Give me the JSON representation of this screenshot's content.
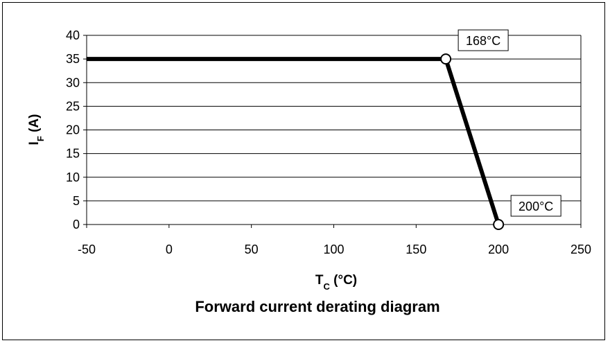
{
  "chart_data": {
    "type": "line",
    "title": "Forward current derating diagram",
    "xlabel": {
      "main": "T",
      "sub": "C",
      "rest": " (°C)"
    },
    "ylabel": {
      "main": "I",
      "sub": "F",
      "rest": " (A)"
    },
    "xlim": [
      -50,
      250
    ],
    "ylim": [
      0,
      40
    ],
    "xticks": [
      -50,
      0,
      50,
      100,
      150,
      200,
      250
    ],
    "yticks": [
      0,
      5,
      10,
      15,
      20,
      25,
      30,
      35,
      40
    ],
    "grid": {
      "horizontal": true,
      "vertical": false
    },
    "legend": "none",
    "series": [
      {
        "x": [
          -50,
          168,
          200
        ],
        "y": [
          35,
          35,
          0
        ],
        "color": "#000000"
      }
    ],
    "markers": [
      {
        "x": 168,
        "y": 35
      },
      {
        "x": 200,
        "y": 0
      }
    ],
    "annotations": [
      {
        "text": "168°C",
        "x": 168,
        "y": 35
      },
      {
        "text": "200°C",
        "x": 200,
        "y": 0
      }
    ]
  }
}
